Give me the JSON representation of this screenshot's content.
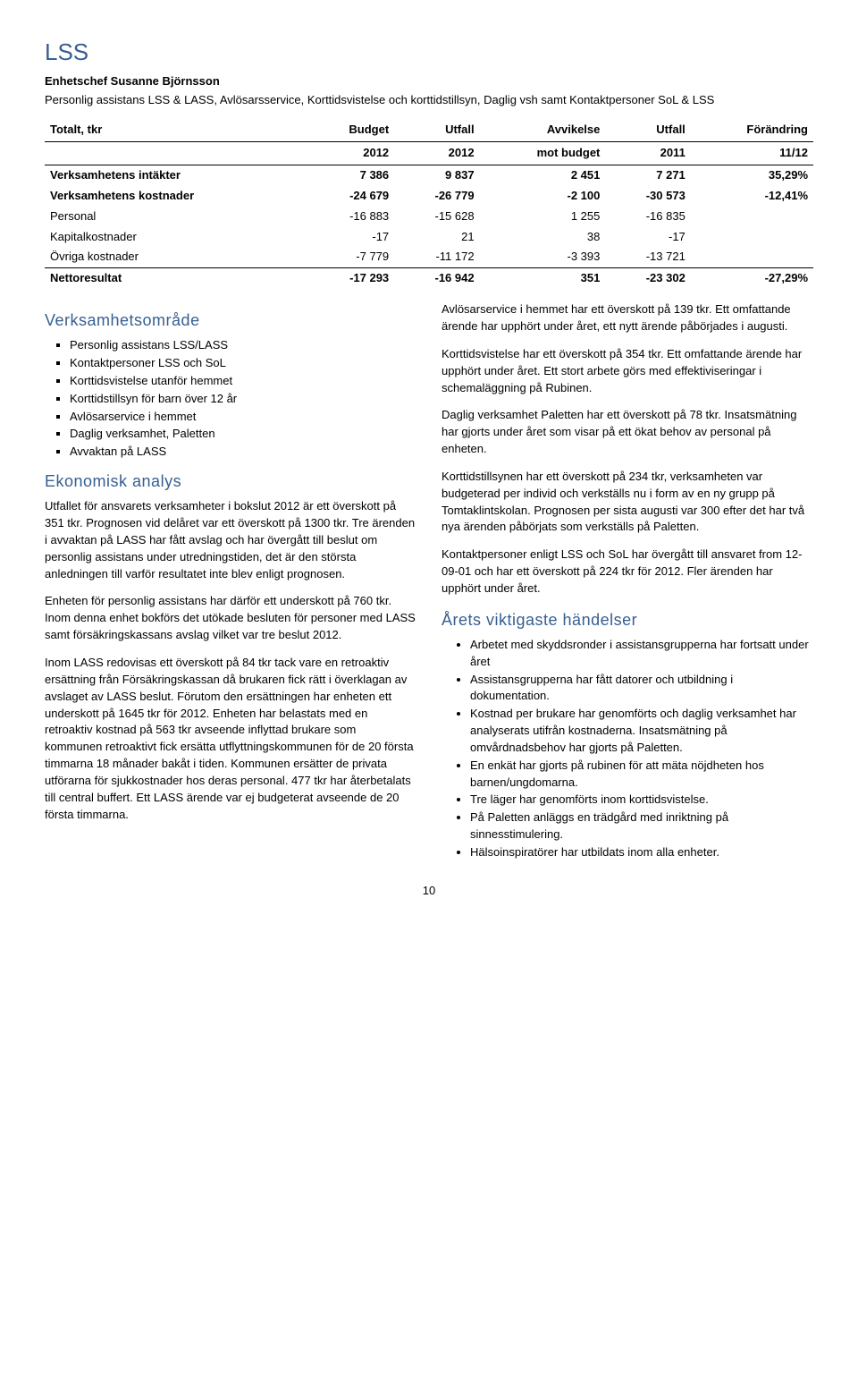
{
  "header": {
    "title": "LSS",
    "chief": "Enhetschef Susanne Björnsson",
    "desc": "Personlig assistans LSS & LASS, Avlösarsservice, Korttidsvistelse och korttidstillsyn, Daglig vsh samt Kontaktpersoner SoL & LSS"
  },
  "table": {
    "headers": [
      "Totalt, tkr",
      "Budget",
      "Utfall",
      "Avvikelse",
      "Utfall",
      "Förändring"
    ],
    "subheaders": [
      "",
      "2012",
      "2012",
      "mot budget",
      "2011",
      "11/12"
    ],
    "rows": [
      {
        "label": "Verksamhetens intäkter",
        "c": [
          "7 386",
          "9 837",
          "2 451",
          "7 271",
          "35,29%"
        ],
        "bold": true,
        "top": true
      },
      {
        "label": "Verksamhetens kostnader",
        "c": [
          "-24 679",
          "-26 779",
          "-2 100",
          "-30 573",
          "-12,41%"
        ],
        "bold": true
      },
      {
        "label": "Personal",
        "c": [
          "-16 883",
          "-15 628",
          "1 255",
          "-16 835",
          ""
        ],
        "bold": false
      },
      {
        "label": "Kapitalkostnader",
        "c": [
          "-17",
          "21",
          "38",
          "-17",
          ""
        ],
        "bold": false
      },
      {
        "label": "Övriga kostnader",
        "c": [
          "-7 779",
          "-11 172",
          "-3 393",
          "-13 721",
          ""
        ],
        "bold": false
      },
      {
        "label": "Nettoresultat",
        "c": [
          "-17 293",
          "-16 942",
          "351",
          "-23 302",
          "-27,29%"
        ],
        "bold": true,
        "top": true
      }
    ]
  },
  "sec_area": {
    "heading": "Verksamhetsområde",
    "items": [
      "Personlig assistans LSS/LASS",
      "Kontaktpersoner LSS och SoL",
      "Korttidsvistelse utanför hemmet",
      "Korttidstillsyn för barn över 12 år",
      "Avlösarservice i hemmet",
      "Daglig verksamhet, Paletten",
      "Avvaktan på LASS"
    ]
  },
  "sec_econ": {
    "heading": "Ekonomisk analys",
    "p1": "Utfallet för ansvarets verksamheter i bokslut 2012 är ett överskott på 351 tkr. Prognosen vid delåret var ett överskott på 1300 tkr. Tre ärenden i avvaktan på LASS har fått avslag och har övergått till beslut om personlig assistans under utredningstiden, det är den största anledningen till varför resultatet inte blev enligt prognosen.",
    "p2": "Enheten för personlig assistans har därför ett underskott på 760 tkr. Inom denna enhet bokförs det utökade besluten för personer med LASS samt försäkringskassans avslag vilket var tre beslut 2012.",
    "p3": "Inom LASS redovisas ett överskott på 84 tkr tack vare en retroaktiv ersättning från Försäkringskassan då brukaren fick rätt i överklagan av avslaget av LASS beslut. Förutom den ersättningen har enheten ett underskott på 1645 tkr för 2012. Enheten har belastats med en retroaktiv kostnad på 563 tkr avseende inflyttad brukare som kommunen retroaktivt fick ersätta utflyttningskommunen för de 20 första timmarna 18 månader bakåt i tiden. Kommunen ersätter de privata utförarna för sjukkostnader hos deras personal. 477 tkr har återbetalats till central buffert. Ett LASS ärende var ej budgeterat avseende de 20 första timmarna.",
    "p4": "Avlösarservice i hemmet har ett överskott på 139 tkr. Ett omfattande ärende har upphört under året, ett nytt ärende påbörjades i augusti.",
    "p5": "Korttidsvistelse har ett överskott på 354 tkr. Ett omfattande ärende har upphört under året. Ett stort arbete görs med effektiviseringar i schemaläggning på Rubinen.",
    "p6": "Daglig verksamhet Paletten har ett överskott på 78 tkr. Insatsmätning har gjorts under året som visar på ett ökat behov av personal på enheten.",
    "p7": "Korttidstillsynen har ett överskott på 234 tkr, verksamheten var budgeterad per individ och verkställs nu i form av en ny grupp på Tomtaklintskolan. Prognosen per sista augusti var 300 efter det har två nya ärenden påbörjats som verkställs på Paletten.",
    "p8": "Kontaktpersoner enligt LSS och SoL har övergått till ansvaret from 12-09-01 och har ett överskott på 224 tkr för 2012. Fler ärenden har upphört under året."
  },
  "sec_events": {
    "heading": "Årets viktigaste händelser",
    "items": [
      "Arbetet med skyddsronder i assistansgrupperna har fortsatt under året",
      "Assistansgrupperna har fått datorer och utbildning i dokumentation.",
      "Kostnad per brukare har genomförts och daglig verksamhet har analyserats utifrån kostnaderna. Insatsmätning på omvårdnadsbehov har gjorts på Paletten.",
      "En enkät har gjorts på rubinen för att mäta nöjdheten hos barnen/ungdomarna.",
      "Tre läger har genomförts inom korttidsvistelse.",
      "På Paletten anläggs en trädgård med inriktning på sinnesstimulering.",
      "Hälsoinspiratörer har utbildats inom alla enheter."
    ]
  },
  "page_number": "10"
}
